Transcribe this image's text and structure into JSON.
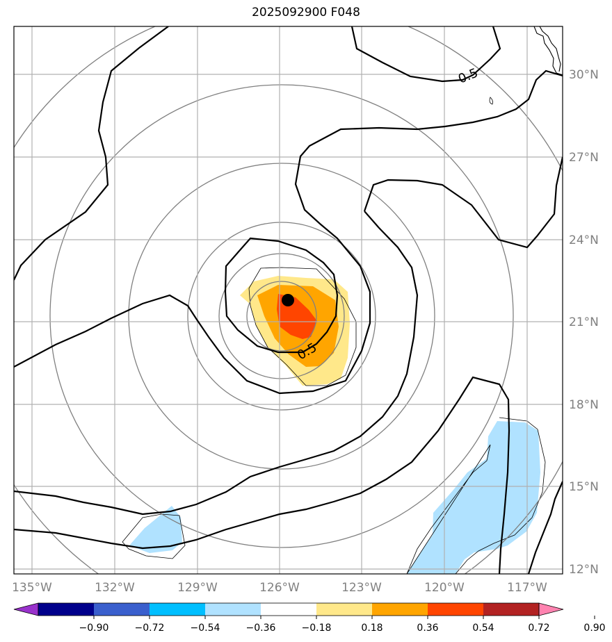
{
  "title": "2025092900 F048",
  "map": {
    "lon_ticks": [
      "135°W",
      "132°W",
      "129°W",
      "126°W",
      "123°W",
      "120°W",
      "117°W"
    ],
    "lat_ticks": [
      "30°N",
      "27°N",
      "24°N",
      "21°N",
      "18°N",
      "15°N",
      "12°N"
    ],
    "contour_label_1": "0.5",
    "contour_label_2": "0.5",
    "center_marker": "storm-center"
  },
  "colorbar": {
    "levels": [
      "−0.90",
      "−0.72",
      "−0.54",
      "−0.36",
      "−0.18",
      "0.18",
      "0.36",
      "0.54",
      "0.72",
      "0.90"
    ],
    "colors": [
      "#9932cc",
      "#00008b",
      "#3a5fcd",
      "#00bfff",
      "#b0e2ff",
      "#ffffff",
      "#ffe88a",
      "#ffa500",
      "#ff4500",
      "#b22222",
      "#ff83b0"
    ]
  },
  "colors": {
    "graticule": "#b0b0b0",
    "ring": "#808080",
    "contour": "#000000",
    "coast": "#000000"
  }
}
